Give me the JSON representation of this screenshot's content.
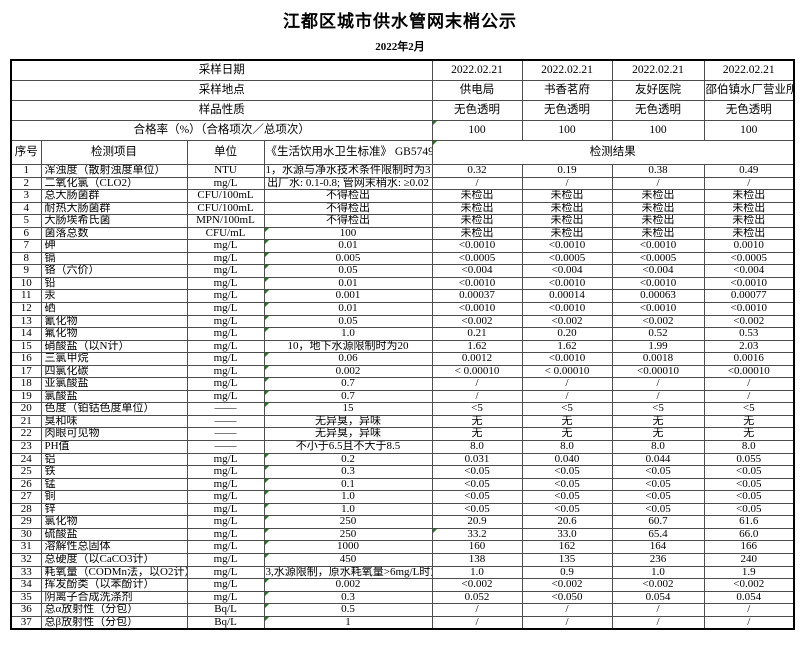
{
  "title": "江都区城市供水管网末梢公示",
  "subtitle": "2022年2月",
  "info_rows": [
    {
      "label": "采样日期",
      "values": [
        "2022.02.21",
        "2022.02.21",
        "2022.02.21",
        "2022.02.21"
      ],
      "green_first": false
    },
    {
      "label": "采样地点",
      "values": [
        "供电局",
        "书香茗府",
        "友好医院",
        "邵伯镇水厂营业所"
      ],
      "green_first": false
    },
    {
      "label": "样品性质",
      "values": [
        "无色透明",
        "无色透明",
        "无色透明",
        "无色透明"
      ],
      "green_first": false
    },
    {
      "label": "合格率（%）（合格项次／总项次）",
      "values": [
        "100",
        "100",
        "100",
        "100"
      ],
      "green_first": true
    }
  ],
  "columns": {
    "seq": "序号",
    "item": "检测项目",
    "unit": "单位",
    "standard": "《生活饮用水卫生标准》 GB5749",
    "results": "检测结果"
  },
  "rows": [
    {
      "seq": "1",
      "item": "浑浊度（散射浊度单位）",
      "unit": "NTU",
      "standard": "1，水源与净水技术条件限制时为3",
      "g": false,
      "values": [
        "0.32",
        "0.19",
        "0.38",
        "0.49"
      ]
    },
    {
      "seq": "2",
      "item": "二氧化氯（CLO2）",
      "unit": "mg/L",
      "standard": "出厂水: 0.1-0.8; 管网末稍水: ≥0.02",
      "g": false,
      "values": [
        "/",
        "/",
        "/",
        "/"
      ]
    },
    {
      "seq": "3",
      "item": "总大肠菌群",
      "unit": "CFU/100mL",
      "standard": "不得检出",
      "g": false,
      "values": [
        "未检出",
        "未检出",
        "未检出",
        "未检出"
      ]
    },
    {
      "seq": "4",
      "item": "耐热大肠菌群",
      "unit": "CFU/100mL",
      "standard": "不得检出",
      "g": false,
      "values": [
        "未检出",
        "未检出",
        "未检出",
        "未检出"
      ]
    },
    {
      "seq": "5",
      "item": "大肠埃希氏菌",
      "unit": "MPN/100mL",
      "standard": "不得检出",
      "g": false,
      "values": [
        "未检出",
        "未检出",
        "未检出",
        "未检出"
      ]
    },
    {
      "seq": "6",
      "item": "菌落总数",
      "unit": "CFU/mL",
      "standard": "100",
      "g": true,
      "values": [
        "未检出",
        "未检出",
        "未检出",
        "未检出"
      ]
    },
    {
      "seq": "7",
      "item": "砷",
      "unit": "mg/L",
      "standard": "0.01",
      "g": true,
      "values": [
        "<0.0010",
        "<0.0010",
        "<0.0010",
        "0.0010"
      ]
    },
    {
      "seq": "8",
      "item": "镉",
      "unit": "mg/L",
      "standard": "0.005",
      "g": true,
      "values": [
        "<0.0005",
        "<0.0005",
        "<0.0005",
        "<0.0005"
      ]
    },
    {
      "seq": "9",
      "item": "铬（六价）",
      "unit": "mg/L",
      "standard": "0.05",
      "g": true,
      "values": [
        "<0.004",
        "<0.004",
        "<0.004",
        "<0.004"
      ]
    },
    {
      "seq": "10",
      "item": "铅",
      "unit": "mg/L",
      "standard": "0.01",
      "g": true,
      "values": [
        "<0.0010",
        "<0.0010",
        "<0.0010",
        "<0.0010"
      ]
    },
    {
      "seq": "11",
      "item": "汞",
      "unit": "mg/L",
      "standard": "0.001",
      "g": true,
      "values": [
        "0.00037",
        "0.00014",
        "0.00063",
        "0.00077"
      ]
    },
    {
      "seq": "12",
      "item": "硒",
      "unit": "mg/L",
      "standard": "0.01",
      "g": true,
      "values": [
        "<0.0010",
        "<0.0010",
        "<0.0010",
        "<0.0010"
      ]
    },
    {
      "seq": "13",
      "item": "氰化物",
      "unit": "mg/L",
      "standard": "0.05",
      "g": true,
      "values": [
        "<0.002",
        "<0.002",
        "<0.002",
        "<0.002"
      ]
    },
    {
      "seq": "14",
      "item": "氟化物",
      "unit": "mg/L",
      "standard": "1.0",
      "g": true,
      "values": [
        "0.21",
        "0.20",
        "0.52",
        "0.53"
      ]
    },
    {
      "seq": "15",
      "item": "硝酸盐（以N计）",
      "unit": "mg/L",
      "standard": "10，地下水源限制时为20",
      "g": false,
      "values": [
        "1.62",
        "1.62",
        "1.99",
        "2.03"
      ]
    },
    {
      "seq": "16",
      "item": "三氯甲烷",
      "unit": "mg/L",
      "standard": "0.06",
      "g": true,
      "values": [
        "0.0012",
        "<0.0010",
        "0.0018",
        "0.0016"
      ]
    },
    {
      "seq": "17",
      "item": "四氯化碳",
      "unit": "mg/L",
      "standard": "0.002",
      "g": true,
      "values": [
        "< 0.00010",
        "< 0.00010",
        "<0.00010",
        "<0.00010"
      ]
    },
    {
      "seq": "18",
      "item": "亚氯酸盐",
      "unit": "mg/L",
      "standard": "0.7",
      "g": true,
      "values": [
        "/",
        "/",
        "/",
        "/"
      ]
    },
    {
      "seq": "19",
      "item": "氯酸盐",
      "unit": "mg/L",
      "standard": "0.7",
      "g": true,
      "values": [
        "/",
        "/",
        "/",
        "/"
      ]
    },
    {
      "seq": "20",
      "item": "色度（铂钴色度单位）",
      "unit": "——",
      "standard": "15",
      "g": true,
      "values": [
        "<5",
        "<5",
        "<5",
        "<5"
      ]
    },
    {
      "seq": "21",
      "item": "臭和味",
      "unit": "——",
      "standard": "无异臭，异味",
      "g": false,
      "values": [
        "无",
        "无",
        "无",
        "无"
      ]
    },
    {
      "seq": "22",
      "item": "肉眼可见物",
      "unit": "——",
      "standard": "无异臭，异味",
      "g": false,
      "values": [
        "无",
        "无",
        "无",
        "无"
      ]
    },
    {
      "seq": "23",
      "item": "PH值",
      "unit": "——",
      "standard": "不小于6.5且不大于8.5",
      "g": false,
      "values": [
        "8.0",
        "8.0",
        "8.0",
        "8.0"
      ]
    },
    {
      "seq": "24",
      "item": "铝",
      "unit": "mg/L",
      "standard": "0.2",
      "g": true,
      "values": [
        "0.031",
        "0.040",
        "0.044",
        "0.055"
      ]
    },
    {
      "seq": "25",
      "item": "铁",
      "unit": "mg/L",
      "standard": "0.3",
      "g": true,
      "values": [
        "<0.05",
        "<0.05",
        "<0.05",
        "<0.05"
      ]
    },
    {
      "seq": "26",
      "item": "锰",
      "unit": "mg/L",
      "standard": "0.1",
      "g": true,
      "values": [
        "<0.05",
        "<0.05",
        "<0.05",
        "<0.05"
      ]
    },
    {
      "seq": "27",
      "item": "铜",
      "unit": "mg/L",
      "standard": "1.0",
      "g": true,
      "values": [
        "<0.05",
        "<0.05",
        "<0.05",
        "<0.05"
      ]
    },
    {
      "seq": "28",
      "item": "锌",
      "unit": "mg/L",
      "standard": "1.0",
      "g": true,
      "values": [
        "<0.05",
        "<0.05",
        "<0.05",
        "<0.05"
      ]
    },
    {
      "seq": "29",
      "item": "氯化物",
      "unit": "mg/L",
      "standard": "250",
      "g": true,
      "values": [
        "20.9",
        "20.6",
        "60.7",
        "61.6"
      ]
    },
    {
      "seq": "30",
      "item": "硫酸盐",
      "unit": "mg/L",
      "standard": "250",
      "g": true,
      "green_first": true,
      "values": [
        "33.2",
        "33.0",
        "65.4",
        "66.0"
      ]
    },
    {
      "seq": "31",
      "item": "溶解性总固体",
      "unit": "mg/L",
      "standard": "1000",
      "g": true,
      "values": [
        "160",
        "162",
        "164",
        "166"
      ]
    },
    {
      "seq": "32",
      "item": "总硬度（以CaCO3计）",
      "unit": "mg/L",
      "standard": "450",
      "g": true,
      "values": [
        "138",
        "135",
        "236",
        "240"
      ]
    },
    {
      "seq": "33",
      "item": "耗氧量（CODMn法，以O2计）",
      "unit": "mg/L",
      "standard": "3,水源限制，原水耗氧量>6mg/L时为5",
      "g": false,
      "values": [
        "1.0",
        "0.9",
        "1.0",
        "1.9"
      ]
    },
    {
      "seq": "34",
      "item": "挥发酚类（以苯酚计）",
      "unit": "mg/L",
      "standard": "0.002",
      "g": true,
      "values": [
        "<0.002",
        "<0.002",
        "<0.002",
        "<0.002"
      ]
    },
    {
      "seq": "35",
      "item": "阴离子合成洗涤剂",
      "unit": "mg/L",
      "standard": "0.3",
      "g": true,
      "values": [
        "0.052",
        "<0.050",
        "0.054",
        "0.054"
      ]
    },
    {
      "seq": "36",
      "item": "总α放射性（分包）",
      "unit": "Bq/L",
      "standard": "0.5",
      "g": true,
      "values": [
        "/",
        "/",
        "/",
        "/"
      ]
    },
    {
      "seq": "37",
      "item": "总β放射性（分包）",
      "unit": "Bq/L",
      "standard": "1",
      "g": true,
      "values": [
        "/",
        "/",
        "/",
        "/"
      ]
    }
  ]
}
